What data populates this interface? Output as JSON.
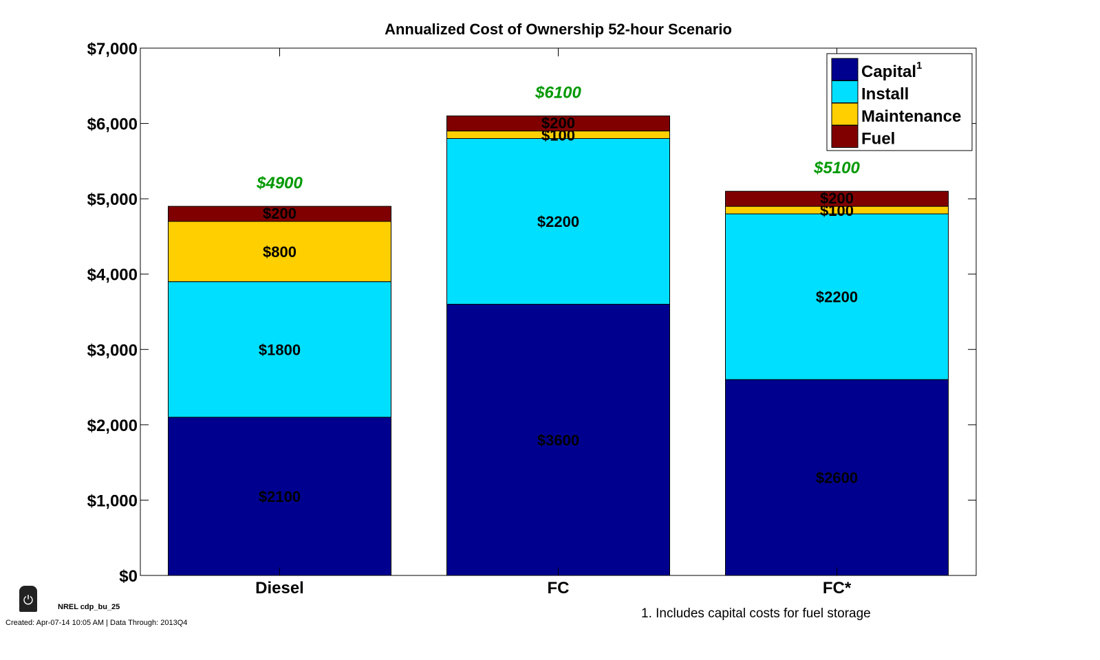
{
  "chart_data": {
    "type": "bar",
    "stacked": true,
    "title": "Annualized Cost of Ownership 52-hour Scenario",
    "xlabel": "",
    "ylabel": "",
    "categories": [
      "Diesel",
      "FC",
      "FC*"
    ],
    "series": [
      {
        "name": "Capital",
        "name_superscript": "1",
        "color": "#00008F",
        "values": [
          2100,
          3600,
          2600
        ],
        "labels": [
          "$2100",
          "$3600",
          "$2600"
        ]
      },
      {
        "name": "Install",
        "color": "#00DFFF",
        "values": [
          1800,
          2200,
          2200
        ],
        "labels": [
          "$1800",
          "$2200",
          "$2200"
        ]
      },
      {
        "name": "Maintenance",
        "color": "#FFCF00",
        "values": [
          800,
          100,
          100
        ],
        "labels": [
          "$800",
          "$100",
          "$100"
        ]
      },
      {
        "name": "Fuel",
        "color": "#800000",
        "values": [
          200,
          200,
          200
        ],
        "labels": [
          "$200",
          "$200",
          "$200"
        ]
      }
    ],
    "totals": [
      "$4900",
      "$6100",
      "$5100"
    ],
    "total_color": "#009900",
    "ylim": [
      0,
      7000
    ],
    "yticks": [
      0,
      1000,
      2000,
      3000,
      4000,
      5000,
      6000,
      7000
    ],
    "ytick_labels": [
      "$0",
      "$1,000",
      "$2,000",
      "$3,000",
      "$4,000",
      "$5,000",
      "$6,000",
      "$7,000"
    ],
    "grid": false,
    "legend": "top-right"
  },
  "footer": {
    "tag": "NREL cdp_bu_25",
    "created": "Created: Apr-07-14 10:05 AM | Data Through: 2013Q4",
    "note": "1. Includes capital costs for fuel storage"
  }
}
